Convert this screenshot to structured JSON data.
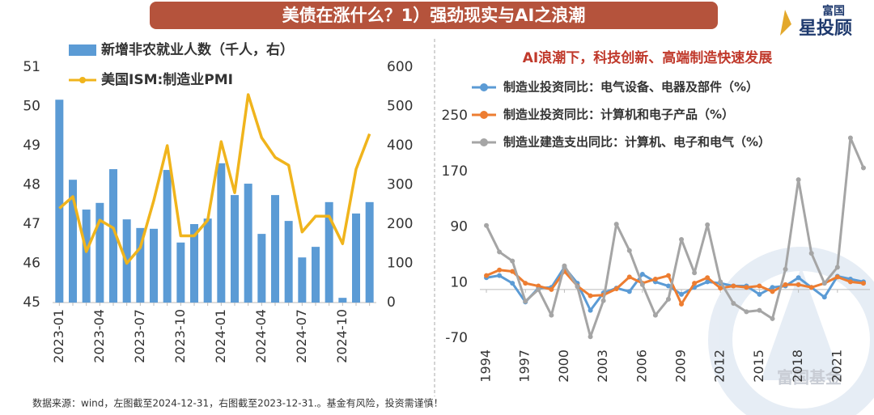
{
  "header": {
    "title": "美债在涨什么？1）强劲现实与AI之浪潮"
  },
  "logo": {
    "top": "富国",
    "main": "星投顾"
  },
  "watermark": "富国基金",
  "footer": "数据来源：wind，左图截至2024-12-31，右图截至2023-12-31.。基金有风险，投资需谨慎！",
  "chart_data": [
    {
      "type": "combo",
      "categories": [
        "2023-01",
        null,
        null,
        "2023-04",
        null,
        null,
        "2023-07",
        null,
        null,
        "2023-10",
        null,
        null,
        "2024-01",
        null,
        null,
        "2024-04",
        null,
        null,
        "2024-07",
        null,
        null,
        "2024-10",
        null,
        null
      ],
      "ylim": [
        45,
        51
      ],
      "yticks": [
        45,
        46,
        47,
        48,
        49,
        50,
        51
      ],
      "y2lim": [
        0,
        600
      ],
      "y2ticks": [
        0,
        100,
        200,
        300,
        400,
        500,
        600
      ],
      "series": [
        {
          "name": "新增非农就业人数（千人，右）",
          "type": "bar",
          "axis": "y2",
          "color": "#5b9bd5",
          "values": [
            517,
            313,
            237,
            254,
            340,
            212,
            190,
            188,
            338,
            153,
            200,
            214,
            355,
            274,
            303,
            175,
            274,
            208,
            115,
            142,
            256,
            12,
            227,
            256
          ]
        },
        {
          "name": "美国ISM:制造业PMI",
          "type": "line",
          "axis": "y",
          "color": "#f0b41c",
          "values": [
            47.4,
            47.7,
            46.3,
            47.1,
            46.9,
            46.0,
            46.4,
            47.6,
            49.0,
            46.7,
            46.7,
            47.1,
            49.1,
            47.8,
            50.3,
            49.2,
            48.7,
            48.5,
            46.8,
            47.2,
            47.2,
            46.5,
            48.4,
            49.3
          ]
        }
      ]
    },
    {
      "type": "line",
      "title": "AI浪潮下，科技创新、高端制造快速发展",
      "x": [
        1994,
        1995,
        1996,
        1997,
        1998,
        1999,
        2000,
        2001,
        2002,
        2003,
        2004,
        2005,
        2006,
        2007,
        2008,
        2009,
        2010,
        2011,
        2012,
        2013,
        2014,
        2015,
        2016,
        2017,
        2018,
        2019,
        2020,
        2021,
        2022,
        2023
      ],
      "xlim": [
        1993.5,
        2023.5
      ],
      "xticks": [
        1994,
        1997,
        2000,
        2003,
        2006,
        2009,
        2012,
        2015,
        2018,
        2021
      ],
      "ylim": [
        -70,
        250
      ],
      "yticks": [
        -70,
        10,
        90,
        170,
        250
      ],
      "series": [
        {
          "name": "制造业投资同比：电气设备、电器及部件（%）",
          "color": "#5b9bd5",
          "values": [
            17,
            20,
            9,
            -18,
            2,
            3,
            32,
            9,
            -30,
            -5,
            2,
            -3,
            22,
            11,
            5,
            -7,
            3,
            11,
            9,
            5,
            5,
            -7,
            3,
            5,
            17,
            3,
            -11,
            19,
            15,
            11
          ]
        },
        {
          "name": "制造业投资同比：计算机和电子产品（%）",
          "color": "#ed7d31",
          "values": [
            20,
            28,
            26,
            9,
            5,
            0,
            26,
            5,
            -9,
            -8,
            1,
            18,
            9,
            15,
            20,
            -21,
            9,
            17,
            2,
            5,
            3,
            5,
            -3,
            7,
            7,
            3,
            9,
            18,
            11,
            9
          ]
        },
        {
          "name": "制造业建造支出同比：计算机、电子和电气（%）",
          "color": "#a5a5a5",
          "values": [
            92,
            54,
            41,
            -17,
            0,
            -37,
            34,
            4,
            -68,
            -16,
            94,
            56,
            7,
            -37,
            -14,
            72,
            24,
            93,
            11,
            -20,
            -32,
            -30,
            -42,
            29,
            158,
            52,
            9,
            32,
            218,
            175
          ]
        }
      ]
    }
  ]
}
